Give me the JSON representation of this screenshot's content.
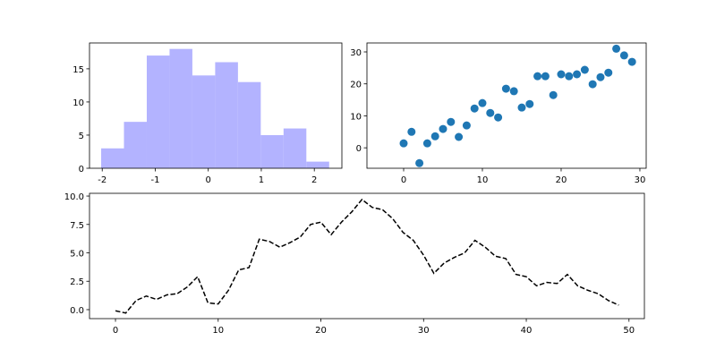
{
  "chart_data": [
    {
      "type": "histogram",
      "bins": [
        -2.02,
        -1.59,
        -1.16,
        -0.73,
        -0.3,
        0.13,
        0.56,
        0.99,
        1.42,
        1.85,
        2.28
      ],
      "values": [
        3,
        7,
        17,
        18,
        14,
        16,
        13,
        5,
        6,
        1
      ],
      "color": "#b3b3ff",
      "xlim": [
        -2.24,
        2.52
      ],
      "xticks": [
        -2,
        -1,
        0,
        1,
        2
      ],
      "ylim": [
        0,
        18.9
      ],
      "yticks": [
        0,
        5,
        10,
        15
      ]
    },
    {
      "type": "scatter",
      "x": [
        0,
        1,
        2,
        3,
        4,
        5,
        6,
        7,
        8,
        9,
        10,
        11,
        12,
        13,
        14,
        15,
        16,
        17,
        18,
        19,
        20,
        21,
        22,
        23,
        24,
        25,
        26,
        27,
        28,
        29
      ],
      "values": [
        1.4,
        5,
        -4.8,
        1.4,
        3.6,
        5.9,
        8.1,
        3.4,
        7,
        12.3,
        14,
        10.9,
        9.5,
        18.5,
        17.7,
        12.6,
        13.7,
        22.4,
        22.4,
        16.5,
        23,
        22.4,
        23,
        24.4,
        19.9,
        22.1,
        23.5,
        31,
        28.9,
        26.9
      ],
      "color": "#1f77b4",
      "xlim": [
        -4.66,
        30.8
      ],
      "xticks": [
        0,
        10,
        20,
        30
      ],
      "ylim": [
        -6.4,
        32.8
      ],
      "yticks": [
        0,
        10,
        20,
        30
      ]
    },
    {
      "type": "line",
      "x": [
        0,
        1,
        2,
        3,
        4,
        5,
        6,
        7,
        8,
        9,
        10,
        11,
        12,
        13,
        14,
        15,
        16,
        17,
        18,
        19,
        20,
        21,
        22,
        23,
        24,
        25,
        26,
        27,
        28,
        29,
        30,
        31,
        32,
        33,
        34,
        35,
        36,
        37,
        38,
        39,
        40,
        41,
        42,
        43,
        44,
        45,
        46,
        47,
        48,
        49
      ],
      "values": [
        -0.1,
        -0.3,
        0.8,
        1.2,
        0.9,
        1.3,
        1.4,
        2.0,
        2.9,
        0.6,
        0.5,
        1.7,
        3.5,
        3.7,
        6.2,
        6.0,
        5.5,
        5.9,
        6.4,
        7.5,
        7.7,
        6.6,
        7.7,
        8.6,
        9.7,
        9.0,
        8.8,
        8.0,
        6.8,
        6.1,
        4.8,
        3.2,
        4.1,
        4.6,
        5.0,
        6.1,
        5.5,
        4.7,
        4.5,
        3.1,
        2.9,
        2.1,
        2.4,
        2.3,
        3.1,
        2.1,
        1.7,
        1.4,
        0.8,
        0.4
      ],
      "color": "#000000",
      "linestyle": "dashed",
      "xlim": [
        -2.53,
        51.5
      ],
      "xticks": [
        0,
        10,
        20,
        30,
        40,
        50
      ],
      "ylim": [
        -0.79,
        10.24
      ],
      "yticks": [
        {
          "value": 0,
          "label": "0.0"
        },
        {
          "value": 2.5,
          "label": "2.5"
        },
        {
          "value": 5,
          "label": "5.0"
        },
        {
          "value": 7.5,
          "label": "7.5"
        },
        {
          "value": 10,
          "label": "10.0"
        }
      ]
    }
  ]
}
